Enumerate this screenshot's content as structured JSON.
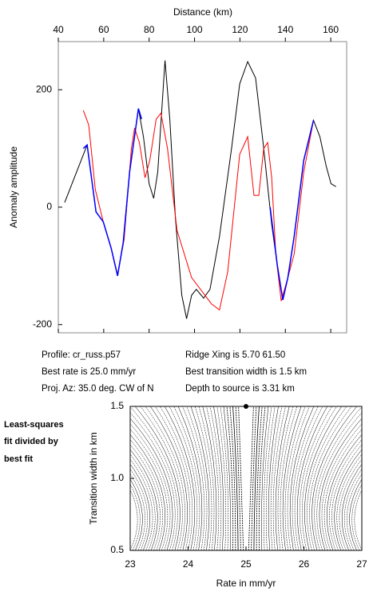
{
  "chart_data": [
    {
      "type": "line",
      "xlabel": "Distance (km)",
      "ylabel": "Anomaly amplitude",
      "xlim": [
        40,
        167
      ],
      "ylim": [
        -214,
        282
      ],
      "xticks": [
        40,
        60,
        80,
        100,
        120,
        140,
        160
      ],
      "yticks": [
        -200,
        0,
        200
      ],
      "series": [
        {
          "color": "#000000",
          "x": [
            42.8,
            52.7,
            56.6,
            59.8,
            63.3,
            66.1,
            68.6,
            71.4,
            75.3,
            77.5,
            80,
            82,
            83.8,
            87,
            89.1,
            91.6,
            94.4,
            96.5,
            98.7,
            100.8,
            104,
            106.8,
            111,
            116.3,
            119.9,
            123.4,
            126.9,
            130.5,
            134,
            136.5,
            138.9,
            141.1,
            143.9,
            148.1,
            152.4,
            155.2,
            158,
            160.1,
            162.3
          ],
          "values": [
            8,
            106,
            -8,
            -25,
            -70,
            -117,
            -60,
            60,
            168,
            120,
            40,
            15,
            60,
            250,
            150,
            -20,
            -150,
            -190,
            -150,
            -140,
            -155,
            -140,
            -50,
            100,
            210,
            248,
            220,
            100,
            -30,
            -100,
            -158,
            -120,
            -50,
            80,
            148,
            120,
            70,
            40,
            35
          ]
        },
        {
          "color": "#ff0000",
          "x": [
            51,
            53.4,
            56.3,
            59.8,
            63.3,
            66.1,
            69,
            72.2,
            73.6,
            75.7,
            78.2,
            80.3,
            83.1,
            85.2,
            88.1,
            92.3,
            98.7,
            107.5,
            111,
            114.6,
            119.9,
            123.4,
            126.2,
            128.3,
            130.5,
            132.2,
            134,
            135.8,
            138.2,
            141.1,
            143.9,
            148.1,
            152.4
          ],
          "values": [
            165,
            140,
            30,
            -25,
            -70,
            -115,
            -55,
            100,
            135,
            110,
            50,
            80,
            150,
            160,
            100,
            -40,
            -120,
            -165,
            -175,
            -110,
            90,
            120,
            20,
            20,
            100,
            110,
            50,
            -80,
            -160,
            -120,
            -80,
            60,
            148
          ]
        },
        {
          "color": "#0000ff",
          "x": [
            51,
            52.7,
            56.6,
            59.8,
            63.3,
            66.1,
            68.6,
            71.4,
            75.3,
            76.7,
            null,
            133.3,
            136.5,
            138.9,
            141.1,
            143.9,
            148.1,
            152.4
          ],
          "values": [
            100,
            106,
            -8,
            -25,
            -70,
            -117,
            -60,
            60,
            168,
            150,
            null,
            0,
            -100,
            -158,
            -120,
            -50,
            80,
            148
          ]
        }
      ]
    },
    {
      "type": "contour",
      "xlabel": "Rate in mm/yr",
      "ylabel": "Transition width in km",
      "note": [
        "Least-squares",
        "fit divided by",
        "best fit"
      ],
      "xlim": [
        23,
        27
      ],
      "ylim": [
        0.5,
        1.5
      ],
      "xticks": [
        23,
        24,
        25,
        26,
        27
      ],
      "yticks": [
        {
          "value": 0.5,
          "label": "0.5"
        },
        {
          "value": 1.0,
          "label": "1.0"
        },
        {
          "value": 1.5,
          "label": "1.5"
        }
      ],
      "best_fit": {
        "x": 25,
        "y": 1.5
      }
    }
  ],
  "info": {
    "left": [
      "Profile: cr_russ.p57",
      "Best rate is 25.0 mm/yr",
      "Proj. Az: 35.0 deg. CW of N"
    ],
    "right": [
      "Ridge Xing is 5.70 61.50",
      "Best transition width is 1.5 km",
      "Depth to source is   3.31 km"
    ]
  }
}
